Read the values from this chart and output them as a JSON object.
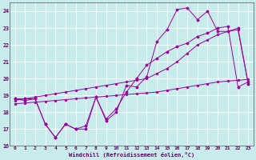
{
  "xlabel": "Windchill (Refroidissement éolien,°C)",
  "bg_color": "#c8ecec",
  "grid_color": "#ffffff",
  "line_color": "#990099",
  "xlim": [
    -0.5,
    23.5
  ],
  "ylim": [
    16,
    24.5
  ],
  "yticks": [
    16,
    17,
    18,
    19,
    20,
    21,
    22,
    23,
    24
  ],
  "xticks": [
    0,
    1,
    2,
    3,
    4,
    5,
    6,
    7,
    8,
    9,
    10,
    11,
    12,
    13,
    14,
    15,
    16,
    17,
    18,
    19,
    20,
    21,
    22,
    23
  ],
  "series1_x": [
    0,
    1,
    2,
    3,
    4,
    5,
    6,
    7,
    8,
    9,
    10,
    11,
    12,
    13,
    14,
    15,
    16,
    17,
    18,
    19,
    20,
    21,
    22,
    23
  ],
  "series1_y": [
    18.8,
    18.8,
    18.8,
    17.3,
    16.5,
    17.3,
    17.0,
    17.0,
    18.9,
    17.5,
    18.0,
    19.6,
    19.5,
    20.1,
    22.2,
    22.9,
    24.1,
    24.2,
    23.5,
    24.0,
    22.8,
    22.8,
    23.0,
    19.7
  ],
  "series2_x": [
    0,
    1,
    2,
    3,
    4,
    5,
    6,
    7,
    8,
    9,
    10,
    11,
    12,
    13,
    14,
    15,
    16,
    17,
    18,
    19,
    20,
    21,
    22,
    23
  ],
  "series2_y": [
    18.8,
    18.7,
    18.8,
    17.3,
    16.5,
    17.3,
    17.0,
    17.2,
    18.9,
    17.6,
    18.2,
    19.2,
    20.0,
    20.8,
    21.2,
    21.6,
    21.9,
    22.1,
    22.5,
    22.7,
    23.0,
    23.1,
    19.5,
    19.8
  ],
  "series3_x": [
    0,
    1,
    2,
    3,
    4,
    5,
    6,
    7,
    8,
    9,
    10,
    11,
    12,
    13,
    14,
    15,
    16,
    17,
    18,
    19,
    20,
    21,
    22,
    23
  ],
  "series3_y": [
    18.7,
    18.8,
    18.9,
    19.0,
    19.1,
    19.2,
    19.3,
    19.4,
    19.5,
    19.6,
    19.7,
    19.8,
    19.9,
    20.0,
    20.3,
    20.6,
    21.0,
    21.5,
    22.0,
    22.3,
    22.6,
    22.8,
    22.9,
    19.7
  ],
  "series4_x": [
    0,
    1,
    2,
    3,
    4,
    5,
    6,
    7,
    8,
    9,
    10,
    11,
    12,
    13,
    14,
    15,
    16,
    17,
    18,
    19,
    20,
    21,
    22,
    23
  ],
  "series4_y": [
    18.5,
    18.55,
    18.6,
    18.65,
    18.7,
    18.75,
    18.8,
    18.85,
    18.9,
    18.95,
    19.0,
    19.05,
    19.1,
    19.15,
    19.2,
    19.3,
    19.4,
    19.5,
    19.6,
    19.7,
    19.8,
    19.85,
    19.9,
    19.95
  ]
}
